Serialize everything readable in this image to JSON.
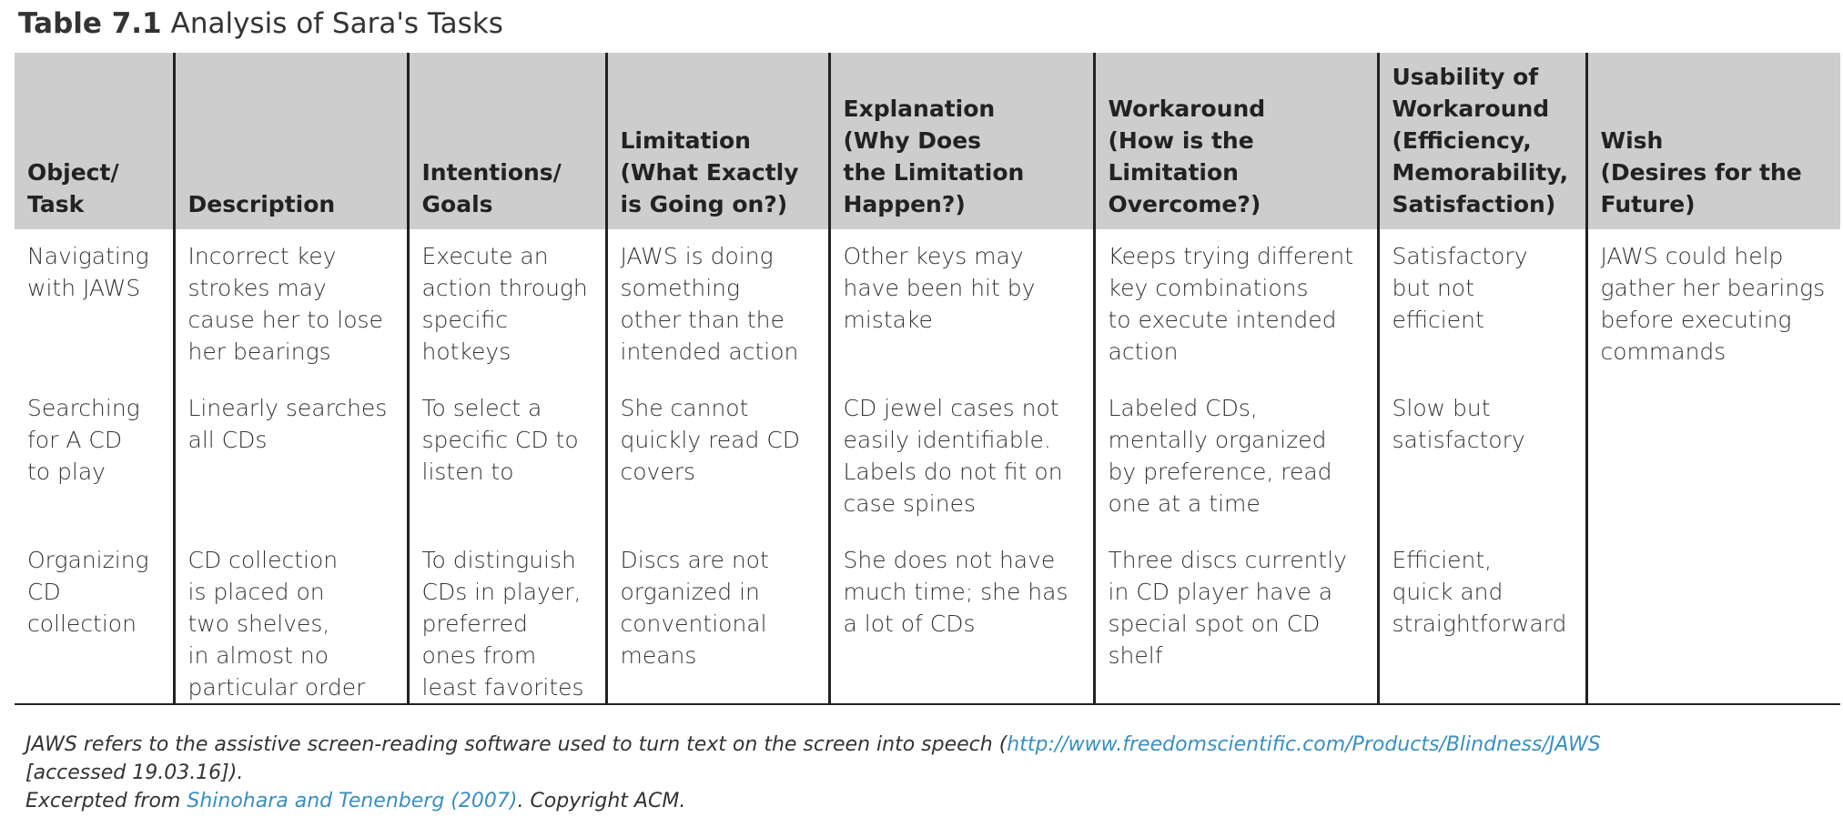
{
  "caption": {
    "label": "Table 7.1",
    "title": "Analysis of Sara's Tasks"
  },
  "table": {
    "header": [
      "Object/\nTask",
      "Description",
      "Intentions/\nGoals",
      "Limitation\n(What Exactly\nis Going on?)",
      "Explanation\n(Why Does\nthe Limitation\nHappen?)",
      "Workaround\n(How is the\nLimitation\nOvercome?)",
      "Usability of\nWorkaround\n(Efficiency,\nMemorability,\nSatisfaction)",
      "Wish\n(Desires for the\nFuture)"
    ],
    "rows": [
      [
        "Navigating\nwith JAWS",
        "Incorrect key\nstrokes may\ncause her to lose\nher bearings",
        "Execute an\naction through\nspecific\nhotkeys",
        "JAWS is doing\nsomething\nother than the\nintended action",
        "Other keys may\nhave been hit by\nmistake",
        "Keeps trying different\nkey combinations\nto execute intended\naction",
        "Satisfactory\nbut not\nefficient",
        "JAWS could help\ngather her bearings\nbefore executing\ncommands"
      ],
      [
        "Searching\nfor A CD\nto play",
        "Linearly searches\nall CDs",
        "To select a\nspecific CD to\nlisten to",
        "She cannot\nquickly read CD\ncovers",
        "CD jewel cases not\neasily identifiable.\nLabels do not fit on\ncase spines",
        "Labeled CDs,\nmentally organized\nby preference, read\none at a time",
        "Slow but\nsatisfactory",
        null
      ],
      [
        "Organizing\nCD\ncollection",
        "CD collection\nis placed on\ntwo shelves,\nin almost no\nparticular order",
        "To distinguish\nCDs in player,\npreferred\nones from\nleast favorites",
        "Discs are not\norganized in\nconventional\nmeans",
        "She does not have\nmuch time; she has\na lot of CDs",
        "Three discs currently\nin CD player have a\nspecial spot on CD\nshelf",
        "Efficient,\nquick and\nstraightforward",
        null
      ]
    ]
  },
  "footnote": {
    "note_text": "JAWS refers to the assistive screen-reading software used to turn text on the screen into speech (",
    "note_link": "http://www.freedomscientific.com/Products/Blindness/JAWS",
    "note_end": "[accessed 19.03.16]).",
    "source_text": "Excerpted from ",
    "source_link": "Shinohara and Tenenberg (2007)",
    "source_end": ". Copyright ACM."
  }
}
